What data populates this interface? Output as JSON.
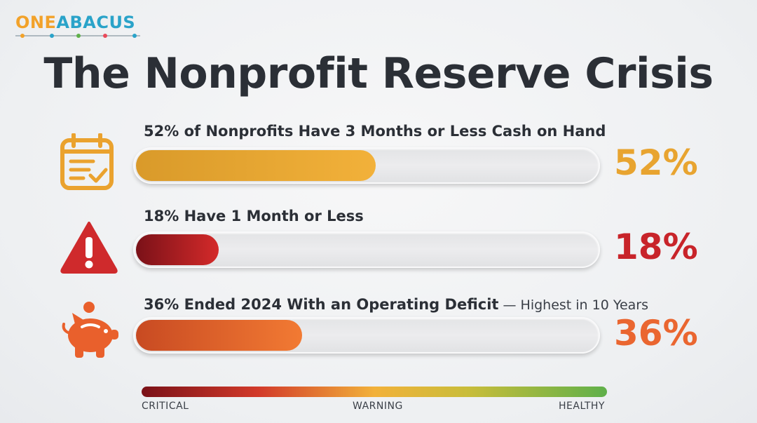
{
  "logo": {
    "part1": "ONE",
    "part2": "ABACUS"
  },
  "title": "The Nonprofit Reserve Crisis",
  "rows": [
    {
      "label_bold": "52% of Nonprofits Have 3 Months or Less Cash on Hand",
      "label_light": "",
      "value_text": "52%",
      "icon": "calendar-check-icon",
      "color": "#e8a430"
    },
    {
      "label_bold": "18% Have 1 Month or Less",
      "label_light": "",
      "value_text": "18%",
      "icon": "warning-triangle-icon",
      "color": "#c8242a"
    },
    {
      "label_bold": "36% Ended 2024 With an Operating Deficit",
      "label_light": " — Highest in 10 Years",
      "value_text": "36%",
      "icon": "piggy-bank-icon",
      "color": "#ea6630"
    }
  ],
  "scale": {
    "left": "CRITICAL",
    "middle": "WARNING",
    "right": "HEALTHY"
  },
  "chart_data": {
    "type": "bar",
    "categories": [
      "52% of Nonprofits Have 3 Months or Less Cash on Hand",
      "18% Have 1 Month or Less",
      "36% Ended 2024 With an Operating Deficit — Highest in 10 Years"
    ],
    "values": [
      52,
      18,
      36
    ],
    "ylim": [
      0,
      100
    ],
    "orientation": "horizontal",
    "colors": [
      "#e8a430",
      "#c8242a",
      "#ea6630"
    ]
  }
}
